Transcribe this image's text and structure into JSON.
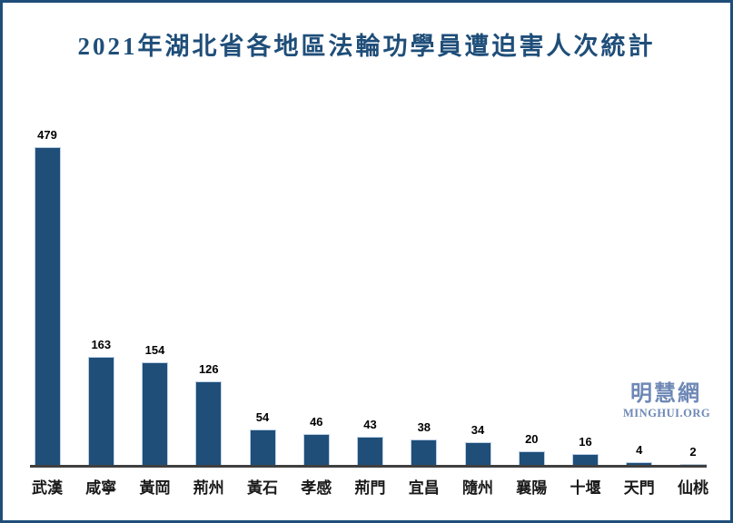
{
  "page": {
    "border_color": "#1F4E79",
    "background_color": "#FFFFFF"
  },
  "chart_data": {
    "type": "bar",
    "title": "2021年湖北省各地區法輪功學員遭迫害人次統計",
    "categories": [
      "武漢",
      "咸寧",
      "黃岡",
      "荊州",
      "黃石",
      "孝感",
      "荊門",
      "宜昌",
      "隨州",
      "襄陽",
      "十堰",
      "天門",
      "仙桃"
    ],
    "values": [
      479,
      163,
      154,
      126,
      54,
      46,
      43,
      38,
      34,
      20,
      16,
      4,
      2
    ],
    "xlabel": "",
    "ylabel": "",
    "ylim": [
      0,
      500
    ],
    "grid": false,
    "legend": "none",
    "data_labels": true,
    "title_color": "#1F4E79",
    "bar_color": "#1F4E79",
    "bar_edge_color": "#BDD0E4",
    "axis_line_color": "#3F3F3F",
    "value_label_color": "#000000",
    "category_label_color": "#1A1A1A"
  },
  "watermark": {
    "cjk_text": "明慧網",
    "latin_text": "MINGHUI.ORG",
    "color": "#6E88B6"
  }
}
